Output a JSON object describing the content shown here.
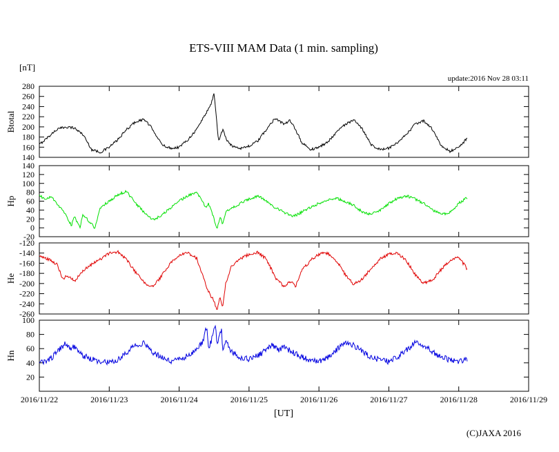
{
  "title": "ETS-VIII MAM Data (1 min. sampling)",
  "unit_label": "[nT]",
  "update_label": "update:2016 Nov 28 03:11",
  "xaxis_label": "[UT]",
  "copyright": "(C)JAXA 2016",
  "x_tick_labels": [
    "2016/11/22",
    "2016/11/23",
    "2016/11/24",
    "2016/11/25",
    "2016/11/26",
    "2016/11/27",
    "2016/11/28",
    "2016/11/29"
  ],
  "chart_data": [
    {
      "type": "line",
      "name": "Btotal",
      "color": "#000000",
      "ylim": [
        140,
        280
      ],
      "yticks": [
        140,
        160,
        180,
        200,
        220,
        240,
        260,
        280
      ],
      "x_hours": [
        0,
        3,
        6,
        9,
        12,
        15,
        18,
        21,
        24,
        27,
        30,
        33,
        36,
        39,
        42,
        45,
        48,
        51,
        54,
        57,
        59,
        60,
        61.5,
        63,
        64.5,
        66,
        69,
        72,
        75,
        78,
        81,
        84,
        86,
        88,
        90,
        93,
        96,
        99,
        102,
        105,
        108,
        111,
        114,
        117,
        120,
        123,
        126,
        129,
        132,
        135,
        138,
        141,
        144,
        147
      ],
      "values": [
        165,
        180,
        195,
        200,
        198,
        185,
        155,
        150,
        160,
        175,
        195,
        210,
        215,
        195,
        165,
        158,
        160,
        175,
        195,
        225,
        245,
        268,
        172,
        195,
        172,
        163,
        158,
        162,
        172,
        195,
        218,
        205,
        212,
        195,
        170,
        155,
        160,
        170,
        190,
        205,
        213,
        195,
        165,
        155,
        158,
        168,
        185,
        205,
        212,
        195,
        162,
        152,
        160,
        178
      ]
    },
    {
      "type": "line",
      "name": "Hp",
      "color": "#00e000",
      "ylim": [
        -20,
        140
      ],
      "yticks": [
        -20,
        0,
        20,
        40,
        60,
        80,
        100,
        120,
        140
      ],
      "x_hours": [
        0,
        2,
        4,
        6,
        9,
        11,
        12,
        14,
        15,
        18,
        19,
        21,
        24,
        27,
        30,
        33,
        36,
        39,
        42,
        45,
        48,
        51,
        54,
        56,
        57,
        58,
        60,
        61,
        62,
        63,
        64,
        66,
        69,
        72,
        75,
        78,
        81,
        84,
        87,
        90,
        93,
        96,
        99,
        102,
        105,
        108,
        111,
        114,
        117,
        120,
        123,
        126,
        129,
        132,
        135,
        138,
        141,
        144,
        147
      ],
      "values": [
        75,
        62,
        70,
        55,
        30,
        5,
        25,
        2,
        30,
        8,
        0,
        45,
        60,
        75,
        82,
        55,
        35,
        18,
        28,
        45,
        60,
        72,
        80,
        60,
        45,
        55,
        20,
        -5,
        25,
        8,
        35,
        45,
        55,
        65,
        72,
        60,
        45,
        35,
        25,
        35,
        45,
        55,
        62,
        66,
        60,
        50,
        35,
        30,
        40,
        55,
        66,
        72,
        65,
        55,
        40,
        30,
        35,
        55,
        68
      ]
    },
    {
      "type": "line",
      "name": "He",
      "color": "#e00000",
      "ylim": [
        -260,
        -120
      ],
      "yticks": [
        -260,
        -240,
        -220,
        -200,
        -180,
        -160,
        -140,
        -120
      ],
      "x_hours": [
        0,
        3,
        6,
        8,
        10,
        12,
        15,
        18,
        21,
        24,
        27,
        30,
        33,
        36,
        39,
        42,
        45,
        48,
        51,
        54,
        57,
        58.5,
        60,
        61,
        62,
        63,
        64,
        66,
        69,
        72,
        75,
        78,
        81,
        84,
        86,
        88,
        90,
        93,
        96,
        99,
        102,
        105,
        108,
        111,
        114,
        117,
        120,
        123,
        126,
        129,
        132,
        135,
        138,
        141,
        144,
        147
      ],
      "values": [
        -145,
        -152,
        -162,
        -190,
        -185,
        -195,
        -175,
        -162,
        -152,
        -140,
        -138,
        -152,
        -178,
        -198,
        -207,
        -185,
        -160,
        -145,
        -140,
        -150,
        -200,
        -220,
        -235,
        -255,
        -228,
        -247,
        -200,
        -165,
        -152,
        -142,
        -138,
        -152,
        -188,
        -207,
        -195,
        -205,
        -175,
        -155,
        -142,
        -140,
        -155,
        -182,
        -202,
        -190,
        -170,
        -152,
        -142,
        -140,
        -155,
        -182,
        -200,
        -193,
        -172,
        -155,
        -148,
        -172
      ]
    },
    {
      "type": "line",
      "name": "Hn",
      "color": "#0000e0",
      "ylim": [
        0,
        100
      ],
      "yticks": [
        20,
        40,
        60,
        80,
        100
      ],
      "x_hours": [
        0,
        3,
        6,
        9,
        11,
        12,
        15,
        18,
        21,
        24,
        27,
        30,
        33,
        36,
        39,
        42,
        45,
        48,
        51,
        54,
        56,
        57.5,
        58,
        59,
        60.5,
        61,
        62.5,
        63,
        64,
        66,
        69,
        72,
        75,
        78,
        80,
        82,
        84,
        87,
        90,
        93,
        96,
        99,
        102,
        105,
        108,
        111,
        114,
        117,
        120,
        123,
        126,
        129,
        132,
        135,
        138,
        141,
        144,
        147
      ],
      "values": [
        40,
        42,
        55,
        68,
        60,
        63,
        50,
        45,
        42,
        40,
        45,
        55,
        65,
        68,
        55,
        48,
        42,
        45,
        50,
        60,
        68,
        92,
        60,
        70,
        95,
        62,
        88,
        58,
        72,
        55,
        48,
        45,
        50,
        58,
        65,
        58,
        62,
        55,
        48,
        44,
        42,
        48,
        58,
        68,
        65,
        55,
        48,
        44,
        42,
        48,
        58,
        68,
        65,
        55,
        48,
        44,
        42,
        46
      ]
    }
  ]
}
